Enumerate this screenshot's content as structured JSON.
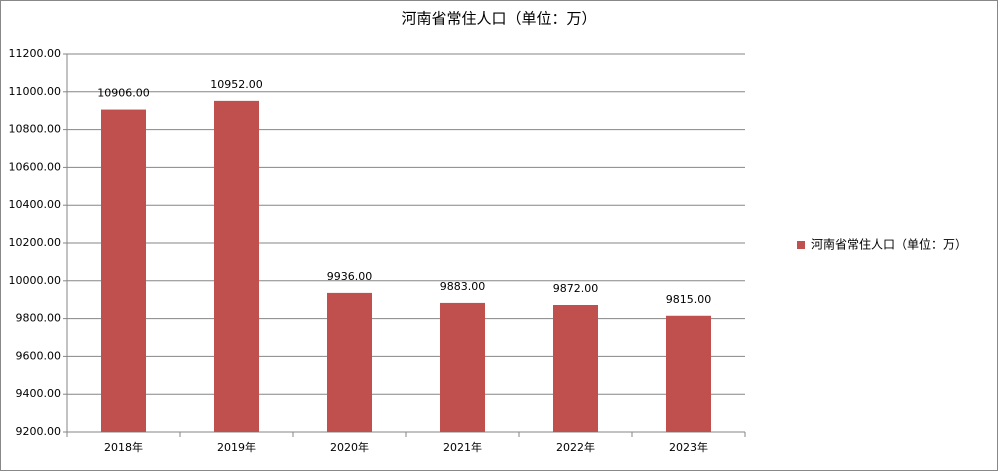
{
  "chart_data": {
    "type": "bar",
    "title": "河南省常住人口（单位：万）",
    "categories": [
      "2018年",
      "2019年",
      "2020年",
      "2021年",
      "2022年",
      "2023年"
    ],
    "series": [
      {
        "name": "河南省常住人口（单位：万）",
        "color": "#c0504d",
        "values": [
          10906,
          10952,
          9936,
          9883,
          9872,
          9815
        ],
        "value_labels": [
          "10906.00",
          "10952.00",
          "9936.00",
          "9883.00",
          "9872.00",
          "9815.00"
        ]
      }
    ],
    "ylim": [
      9200,
      11200
    ],
    "yticks": [
      {
        "value": 9200,
        "label": "9200.00"
      },
      {
        "value": 9400,
        "label": "9400.00"
      },
      {
        "value": 9600,
        "label": "9600.00"
      },
      {
        "value": 9800,
        "label": "9800.00"
      },
      {
        "value": 10000,
        "label": "10000.00"
      },
      {
        "value": 10200,
        "label": "10200.00"
      },
      {
        "value": 10400,
        "label": "10400.00"
      },
      {
        "value": 10600,
        "label": "10600.00"
      },
      {
        "value": 10800,
        "label": "10800.00"
      },
      {
        "value": 11000,
        "label": "11000.00"
      },
      {
        "value": 11200,
        "label": "11200.00"
      }
    ],
    "grid": true,
    "legend": "right"
  }
}
